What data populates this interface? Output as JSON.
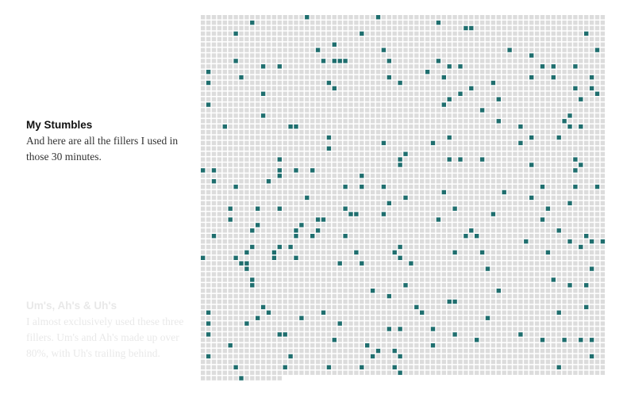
{
  "sections": [
    {
      "title": "My Stumbles",
      "body": "And here are all the fillers I used in those 30 minutes."
    },
    {
      "title": "Um's, Ah's & Uh's",
      "body": "I almost exclusively used these three fillers. Um's and Ah's made up over 80%, with Uh's trailing behind."
    }
  ],
  "chart_data": {
    "type": "waffle",
    "columns": 74,
    "full_rows": 66,
    "last_row_cells": 15,
    "total_cells": 4899,
    "filler_count": 221,
    "colors": {
      "empty_cell": "#dcdcdc",
      "filler_cell": "#1f6e6e"
    }
  }
}
